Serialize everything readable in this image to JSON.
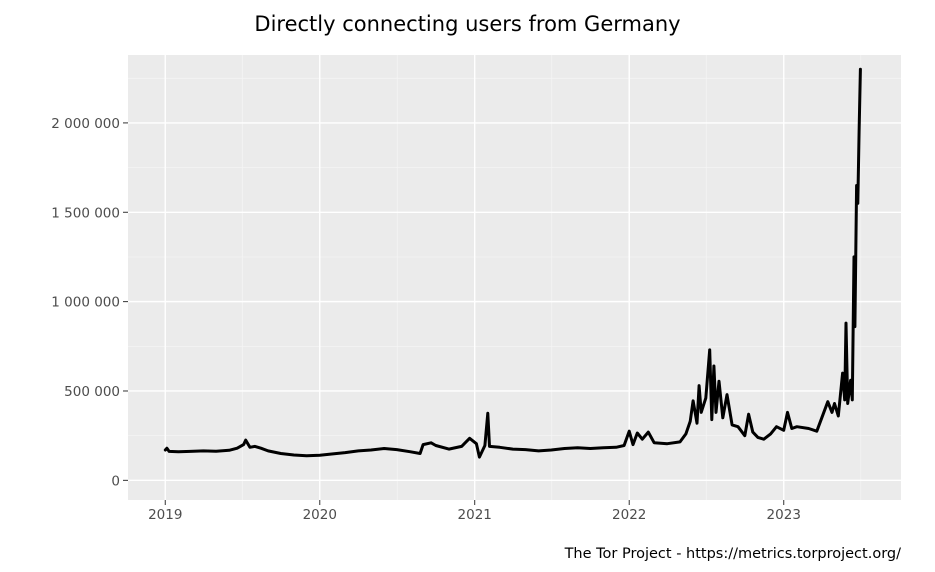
{
  "chart_data": {
    "type": "line",
    "title": "Directly connecting users from Germany",
    "xlabel": "",
    "ylabel": "",
    "x_ticks": [
      "2019",
      "2020",
      "2021",
      "2022",
      "2023"
    ],
    "y_ticks": [
      0,
      500000,
      1000000,
      1500000,
      2000000
    ],
    "y_tick_labels": [
      "0",
      "500 000",
      "1 000 000",
      "1 500 000",
      "2 000 000"
    ],
    "xlim": [
      "2018-10-05",
      "2023-10-05"
    ],
    "ylim": [
      -110000,
      2380000
    ],
    "grid": true,
    "series": [
      {
        "color": "#000000",
        "points": [
          [
            "2019-01-01",
            170000
          ],
          [
            "2019-01-05",
            180000
          ],
          [
            "2019-01-10",
            162000
          ],
          [
            "2019-02-01",
            160000
          ],
          [
            "2019-03-01",
            162000
          ],
          [
            "2019-04-01",
            165000
          ],
          [
            "2019-05-01",
            163000
          ],
          [
            "2019-06-01",
            168000
          ],
          [
            "2019-06-20",
            180000
          ],
          [
            "2019-07-05",
            200000
          ],
          [
            "2019-07-10",
            225000
          ],
          [
            "2019-07-20",
            185000
          ],
          [
            "2019-08-01",
            190000
          ],
          [
            "2019-08-15",
            180000
          ],
          [
            "2019-09-01",
            165000
          ],
          [
            "2019-10-01",
            150000
          ],
          [
            "2019-11-01",
            142000
          ],
          [
            "2019-12-01",
            138000
          ],
          [
            "2020-01-01",
            140000
          ],
          [
            "2020-02-01",
            148000
          ],
          [
            "2020-03-01",
            155000
          ],
          [
            "2020-04-01",
            165000
          ],
          [
            "2020-05-01",
            170000
          ],
          [
            "2020-06-01",
            178000
          ],
          [
            "2020-07-01",
            172000
          ],
          [
            "2020-08-01",
            160000
          ],
          [
            "2020-08-25",
            150000
          ],
          [
            "2020-09-01",
            200000
          ],
          [
            "2020-09-20",
            210000
          ],
          [
            "2020-10-01",
            195000
          ],
          [
            "2020-11-01",
            175000
          ],
          [
            "2020-12-01",
            190000
          ],
          [
            "2020-12-20",
            235000
          ],
          [
            "2021-01-05",
            205000
          ],
          [
            "2021-01-12",
            130000
          ],
          [
            "2021-01-25",
            195000
          ],
          [
            "2021-02-01",
            375000
          ],
          [
            "2021-02-05",
            190000
          ],
          [
            "2021-03-01",
            185000
          ],
          [
            "2021-04-01",
            175000
          ],
          [
            "2021-05-01",
            172000
          ],
          [
            "2021-06-01",
            165000
          ],
          [
            "2021-07-01",
            170000
          ],
          [
            "2021-08-01",
            178000
          ],
          [
            "2021-09-01",
            182000
          ],
          [
            "2021-10-01",
            178000
          ],
          [
            "2021-11-01",
            182000
          ],
          [
            "2021-12-01",
            185000
          ],
          [
            "2021-12-20",
            195000
          ],
          [
            "2022-01-01",
            275000
          ],
          [
            "2022-01-10",
            200000
          ],
          [
            "2022-01-20",
            265000
          ],
          [
            "2022-02-01",
            230000
          ],
          [
            "2022-02-15",
            270000
          ],
          [
            "2022-03-01",
            210000
          ],
          [
            "2022-04-01",
            205000
          ],
          [
            "2022-05-01",
            215000
          ],
          [
            "2022-05-15",
            260000
          ],
          [
            "2022-05-25",
            330000
          ],
          [
            "2022-06-01",
            445000
          ],
          [
            "2022-06-10",
            320000
          ],
          [
            "2022-06-15",
            530000
          ],
          [
            "2022-06-20",
            380000
          ],
          [
            "2022-07-01",
            460000
          ],
          [
            "2022-07-10",
            730000
          ],
          [
            "2022-07-15",
            340000
          ],
          [
            "2022-07-20",
            640000
          ],
          [
            "2022-07-25",
            380000
          ],
          [
            "2022-08-01",
            555000
          ],
          [
            "2022-08-10",
            350000
          ],
          [
            "2022-08-20",
            480000
          ],
          [
            "2022-09-01",
            310000
          ],
          [
            "2022-09-15",
            300000
          ],
          [
            "2022-10-01",
            250000
          ],
          [
            "2022-10-10",
            370000
          ],
          [
            "2022-10-20",
            270000
          ],
          [
            "2022-11-01",
            240000
          ],
          [
            "2022-11-15",
            230000
          ],
          [
            "2022-12-01",
            260000
          ],
          [
            "2022-12-15",
            300000
          ],
          [
            "2023-01-01",
            280000
          ],
          [
            "2023-01-10",
            380000
          ],
          [
            "2023-01-20",
            290000
          ],
          [
            "2023-02-01",
            300000
          ],
          [
            "2023-03-01",
            290000
          ],
          [
            "2023-03-20",
            275000
          ],
          [
            "2023-04-01",
            350000
          ],
          [
            "2023-04-15",
            440000
          ],
          [
            "2023-04-25",
            380000
          ],
          [
            "2023-05-01",
            430000
          ],
          [
            "2023-05-10",
            360000
          ],
          [
            "2023-05-20",
            600000
          ],
          [
            "2023-05-25",
            450000
          ],
          [
            "2023-05-28",
            880000
          ],
          [
            "2023-06-01",
            430000
          ],
          [
            "2023-06-08",
            560000
          ],
          [
            "2023-06-12",
            450000
          ],
          [
            "2023-06-16",
            1250000
          ],
          [
            "2023-06-18",
            860000
          ],
          [
            "2023-06-22",
            1650000
          ],
          [
            "2023-06-25",
            1550000
          ],
          [
            "2023-06-28",
            1950000
          ],
          [
            "2023-07-01",
            2300000
          ]
        ]
      }
    ]
  },
  "caption": "The Tor Project - https://metrics.torproject.org/"
}
